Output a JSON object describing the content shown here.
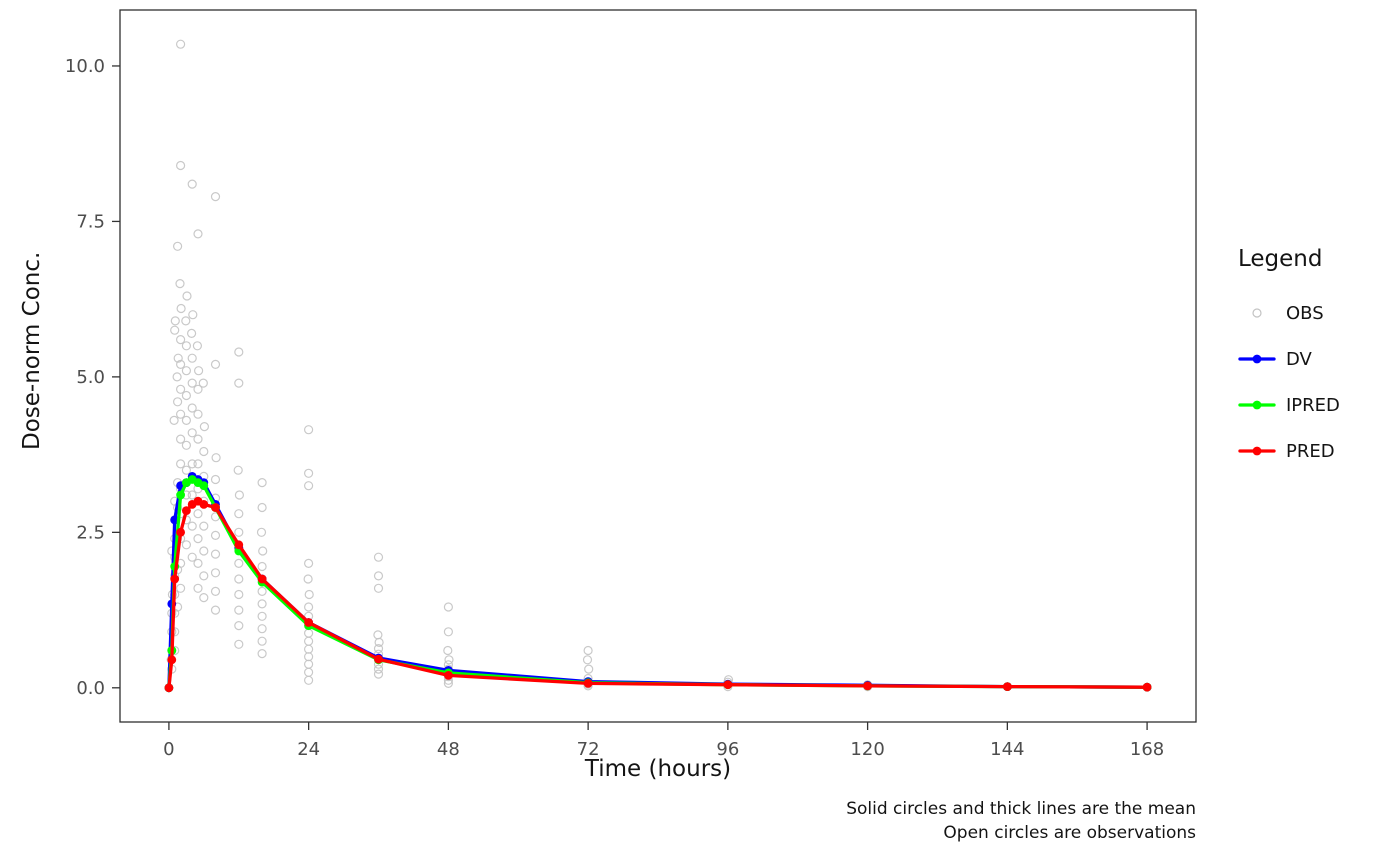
{
  "chart_data": {
    "type": "line",
    "title": "",
    "xlabel": "Time (hours)",
    "ylabel": "Dose-norm Conc.",
    "xlim": [
      -8.4,
      176.4
    ],
    "ylim": [
      -0.55,
      10.9
    ],
    "xticks": [
      0,
      24,
      48,
      72,
      96,
      120,
      144,
      168
    ],
    "yticks": [
      0,
      2.5,
      5,
      7.5,
      10
    ],
    "ytick_labels": [
      "0.0",
      "2.5",
      "5.0",
      "7.5",
      "10.0"
    ],
    "grid": false,
    "legend": {
      "title": "Legend",
      "position": "right",
      "entries": [
        {
          "label": "OBS",
          "type": "open-point",
          "color": "#c3c3c3"
        },
        {
          "label": "DV",
          "type": "line-point",
          "color": "#0000ff"
        },
        {
          "label": "IPRED",
          "type": "line-point",
          "color": "#00ff00"
        },
        {
          "label": "PRED",
          "type": "line-point",
          "color": "#ff0000"
        }
      ]
    },
    "caption": [
      "Solid circles and thick lines are the mean",
      "Open circles are observations"
    ],
    "x": [
      0,
      0.5,
      1,
      2,
      3,
      4,
      5,
      6,
      8,
      12,
      16,
      24,
      36,
      48,
      72,
      96,
      120,
      144,
      168
    ],
    "series": [
      {
        "name": "DV",
        "color": "#0000ff",
        "values": [
          0,
          1.35,
          2.7,
          3.25,
          3.3,
          3.4,
          3.35,
          3.3,
          2.95,
          2.25,
          1.75,
          1.05,
          0.48,
          0.28,
          0.1,
          0.06,
          0.04,
          0.02,
          0.01
        ]
      },
      {
        "name": "IPRED",
        "color": "#00ff00",
        "values": [
          0,
          0.6,
          1.95,
          3.1,
          3.3,
          3.35,
          3.3,
          3.25,
          2.9,
          2.2,
          1.7,
          1.0,
          0.45,
          0.24,
          0.08,
          0.05,
          0.03,
          0.02,
          0.01
        ]
      },
      {
        "name": "PRED",
        "color": "#ff0000",
        "values": [
          0,
          0.45,
          1.75,
          2.5,
          2.85,
          2.95,
          3.0,
          2.95,
          2.9,
          2.3,
          1.75,
          1.05,
          0.46,
          0.2,
          0.07,
          0.05,
          0.03,
          0.02,
          0.01
        ]
      }
    ],
    "observations": {
      "name": "OBS",
      "color": "#c3c3c3",
      "points": [
        [
          0.5,
          0.3
        ],
        [
          0.5,
          0.6
        ],
        [
          0.5,
          0.9
        ],
        [
          0.5,
          1.2
        ],
        [
          0.6,
          1.5
        ],
        [
          0.4,
          0.45
        ],
        [
          0.5,
          2.2
        ],
        [
          1,
          0.6
        ],
        [
          1,
          0.9
        ],
        [
          1,
          1.2
        ],
        [
          1,
          1.5
        ],
        [
          1,
          1.8
        ],
        [
          1,
          2.1
        ],
        [
          1,
          2.4
        ],
        [
          1,
          2.7
        ],
        [
          1,
          3.0
        ],
        [
          1,
          5.75
        ],
        [
          1.1,
          5.9
        ],
        [
          0.9,
          4.3
        ],
        [
          1.5,
          1.3
        ],
        [
          1.5,
          1.9
        ],
        [
          1.5,
          2.4
        ],
        [
          1.5,
          2.9
        ],
        [
          1.5,
          3.3
        ],
        [
          1.5,
          4.6
        ],
        [
          1.4,
          5.0
        ],
        [
          1.6,
          5.3
        ],
        [
          1.5,
          7.1
        ],
        [
          2,
          1.6
        ],
        [
          2,
          2.0
        ],
        [
          2,
          2.4
        ],
        [
          2,
          2.8
        ],
        [
          2,
          3.2
        ],
        [
          2,
          3.6
        ],
        [
          2,
          4.0
        ],
        [
          2,
          4.4
        ],
        [
          2,
          4.8
        ],
        [
          2,
          5.2
        ],
        [
          2,
          5.6
        ],
        [
          2.1,
          6.1
        ],
        [
          1.9,
          6.5
        ],
        [
          2,
          8.4
        ],
        [
          2,
          10.35
        ],
        [
          3,
          2.3
        ],
        [
          3,
          2.7
        ],
        [
          3,
          3.1
        ],
        [
          3,
          3.5
        ],
        [
          3,
          3.9
        ],
        [
          3,
          4.3
        ],
        [
          3,
          4.7
        ],
        [
          3,
          5.1
        ],
        [
          3,
          5.5
        ],
        [
          2.9,
          5.9
        ],
        [
          3.1,
          6.3
        ],
        [
          4,
          2.1
        ],
        [
          4,
          2.6
        ],
        [
          4,
          3.1
        ],
        [
          4,
          3.6
        ],
        [
          4,
          4.1
        ],
        [
          4,
          4.5
        ],
        [
          4,
          4.9
        ],
        [
          4,
          5.3
        ],
        [
          3.9,
          5.7
        ],
        [
          4.1,
          6.0
        ],
        [
          4,
          8.1
        ],
        [
          5,
          1.6
        ],
        [
          5,
          2.0
        ],
        [
          5,
          2.4
        ],
        [
          5,
          2.8
        ],
        [
          5,
          3.2
        ],
        [
          5,
          3.6
        ],
        [
          5,
          4.0
        ],
        [
          5,
          4.4
        ],
        [
          5,
          4.8
        ],
        [
          5.1,
          5.1
        ],
        [
          4.9,
          5.5
        ],
        [
          5,
          7.3
        ],
        [
          6,
          1.45
        ],
        [
          6,
          1.8
        ],
        [
          6,
          2.2
        ],
        [
          6,
          2.6
        ],
        [
          6,
          3.0
        ],
        [
          6,
          3.4
        ],
        [
          6,
          3.8
        ],
        [
          6.1,
          4.2
        ],
        [
          5.9,
          4.9
        ],
        [
          8,
          1.25
        ],
        [
          8,
          1.55
        ],
        [
          8,
          1.85
        ],
        [
          8,
          2.15
        ],
        [
          8,
          2.45
        ],
        [
          8,
          2.75
        ],
        [
          8,
          3.05
        ],
        [
          8,
          3.35
        ],
        [
          8.1,
          3.7
        ],
        [
          8,
          5.2
        ],
        [
          8,
          7.9
        ],
        [
          12,
          0.7
        ],
        [
          12,
          1.0
        ],
        [
          12,
          1.25
        ],
        [
          12,
          1.5
        ],
        [
          12,
          1.75
        ],
        [
          12,
          2.0
        ],
        [
          12,
          2.25
        ],
        [
          12,
          2.5
        ],
        [
          12,
          2.8
        ],
        [
          12.1,
          3.1
        ],
        [
          11.9,
          3.5
        ],
        [
          12,
          4.9
        ],
        [
          12,
          5.4
        ],
        [
          16,
          0.55
        ],
        [
          16,
          0.75
        ],
        [
          16,
          0.95
        ],
        [
          16,
          1.15
        ],
        [
          16,
          1.35
        ],
        [
          16,
          1.55
        ],
        [
          16,
          1.75
        ],
        [
          16,
          1.95
        ],
        [
          16.1,
          2.2
        ],
        [
          15.9,
          2.5
        ],
        [
          16,
          2.9
        ],
        [
          16,
          3.3
        ],
        [
          24,
          0.12
        ],
        [
          24,
          0.25
        ],
        [
          24,
          0.38
        ],
        [
          24,
          0.5
        ],
        [
          24,
          0.62
        ],
        [
          24,
          0.75
        ],
        [
          24,
          0.88
        ],
        [
          24,
          1.0
        ],
        [
          24,
          1.15
        ],
        [
          24,
          1.3
        ],
        [
          24.1,
          1.5
        ],
        [
          23.9,
          1.75
        ],
        [
          24,
          2.0
        ],
        [
          24,
          3.25
        ],
        [
          24,
          3.45
        ],
        [
          24,
          4.15
        ],
        [
          36,
          0.22
        ],
        [
          36,
          0.3
        ],
        [
          36,
          0.38
        ],
        [
          36,
          0.46
        ],
        [
          36,
          0.54
        ],
        [
          36,
          0.63
        ],
        [
          36.1,
          0.73
        ],
        [
          35.9,
          0.85
        ],
        [
          36,
          1.6
        ],
        [
          36,
          1.8
        ],
        [
          36,
          2.1
        ],
        [
          48,
          0.07
        ],
        [
          48,
          0.12
        ],
        [
          48,
          0.18
        ],
        [
          48,
          0.24
        ],
        [
          48,
          0.3
        ],
        [
          48,
          0.37
        ],
        [
          48.1,
          0.45
        ],
        [
          47.9,
          0.6
        ],
        [
          48,
          0.9
        ],
        [
          48,
          1.3
        ],
        [
          72,
          0.03
        ],
        [
          72,
          0.06
        ],
        [
          72,
          0.1
        ],
        [
          72,
          0.15
        ],
        [
          72.1,
          0.3
        ],
        [
          71.9,
          0.45
        ],
        [
          72,
          0.6
        ],
        [
          96,
          0.02
        ],
        [
          96,
          0.05
        ],
        [
          96,
          0.09
        ],
        [
          96.1,
          0.13
        ],
        [
          120,
          0.02
        ],
        [
          120,
          0.05
        ]
      ]
    }
  }
}
